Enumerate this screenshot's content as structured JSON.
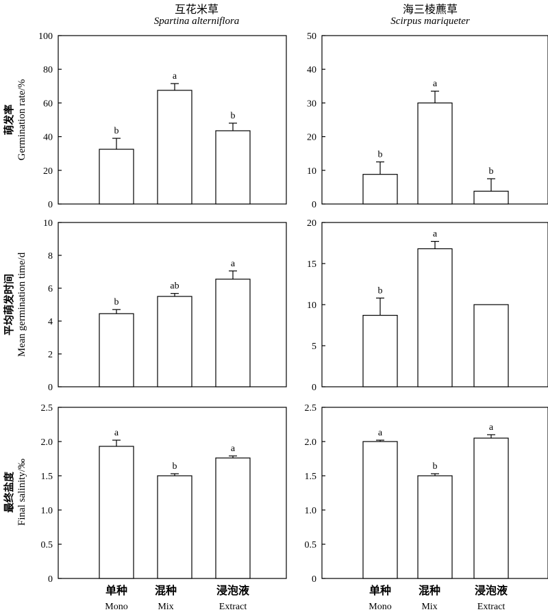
{
  "columns": [
    {
      "title_zh": "互花米草",
      "title_en": "Spartina alterniflora"
    },
    {
      "title_zh": "海三棱藨草",
      "title_en": "Scirpus mariqueter"
    }
  ],
  "rows": [
    {
      "ylabel_zh": "萌发率",
      "ylabel_en": "Germination rate/%"
    },
    {
      "ylabel_zh": "平均萌发时间",
      "ylabel_en": "Mean germination time/d"
    },
    {
      "ylabel_zh": "最终盐度",
      "ylabel_en": "Final salinity/‰"
    }
  ],
  "categories": [
    {
      "zh": "单种",
      "en": "Mono"
    },
    {
      "zh": "混种",
      "en": "Mix"
    },
    {
      "zh": "浸泡液",
      "en": "Extract"
    }
  ],
  "chart_data": [
    {
      "type": "bar",
      "title": "互花米草 Spartina alterniflora",
      "ylabel": "萌发率 Germination rate/%",
      "categories": [
        "Mono",
        "Mix",
        "Extract"
      ],
      "values": [
        32.5,
        67.5,
        43.5
      ],
      "errors": [
        6.5,
        4.0,
        4.5
      ],
      "labels": [
        "b",
        "a",
        "b"
      ],
      "ylim": [
        0,
        100
      ],
      "yticks": [
        "0",
        "20",
        "40",
        "60",
        "80",
        "100"
      ]
    },
    {
      "type": "bar",
      "title": "海三棱藨草 Scirpus mariqueter",
      "ylabel": "萌发率 Germination rate/%",
      "categories": [
        "Mono",
        "Mix",
        "Extract"
      ],
      "values": [
        8.8,
        30.0,
        3.8
      ],
      "errors": [
        3.7,
        3.5,
        3.7
      ],
      "labels": [
        "b",
        "a",
        "b"
      ],
      "ylim": [
        0,
        50
      ],
      "yticks": [
        "0",
        "10",
        "20",
        "30",
        "40",
        "50"
      ]
    },
    {
      "type": "bar",
      "title": "互花米草 Spartina alterniflora",
      "ylabel": "平均萌发时间 Mean germination time/d",
      "categories": [
        "Mono",
        "Mix",
        "Extract"
      ],
      "values": [
        4.45,
        5.5,
        6.55
      ],
      "errors": [
        0.25,
        0.18,
        0.5
      ],
      "labels": [
        "b",
        "ab",
        "a"
      ],
      "ylim": [
        0,
        10
      ],
      "yticks": [
        "0",
        "2",
        "4",
        "6",
        "8",
        "10"
      ]
    },
    {
      "type": "bar",
      "title": "海三棱藨草 Scirpus mariqueter",
      "ylabel": "平均萌发时间 Mean germination time/d",
      "categories": [
        "Mono",
        "Mix",
        "Extract"
      ],
      "values": [
        8.7,
        16.8,
        10.0
      ],
      "errors": [
        2.1,
        0.9,
        0
      ],
      "labels": [
        "b",
        "a",
        ""
      ],
      "ylim": [
        0,
        20
      ],
      "yticks": [
        "0",
        "5",
        "10",
        "15",
        "20"
      ]
    },
    {
      "type": "bar",
      "title": "互花米草 Spartina alterniflora",
      "ylabel": "最终盐度 Final salinity/‰",
      "categories": [
        "Mono",
        "Mix",
        "Extract"
      ],
      "values": [
        1.93,
        1.5,
        1.76
      ],
      "errors": [
        0.09,
        0.03,
        0.03
      ],
      "labels": [
        "a",
        "b",
        "a"
      ],
      "ylim": [
        0,
        2.5
      ],
      "yticks": [
        "0",
        "0.5",
        "1.0",
        "1.5",
        "2.0",
        "2.5"
      ]
    },
    {
      "type": "bar",
      "title": "海三棱藨草 Scirpus mariqueter",
      "ylabel": "最终盐度 Final salinity/‰",
      "categories": [
        "Mono",
        "Mix",
        "Extract"
      ],
      "values": [
        2.0,
        1.5,
        2.05
      ],
      "errors": [
        0.02,
        0.03,
        0.05
      ],
      "labels": [
        "a",
        "b",
        "a"
      ],
      "ylim": [
        0,
        2.5
      ],
      "yticks": [
        "0",
        "0.5",
        "1.0",
        "1.5",
        "2.0",
        "2.5"
      ]
    }
  ]
}
